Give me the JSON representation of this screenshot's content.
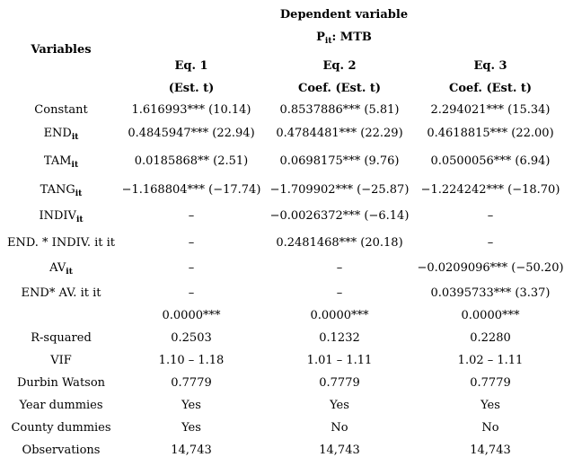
{
  "header": {
    "dependent_variable": "Dependent variable",
    "dv_symbol_main": "P",
    "dv_symbol_sub": "it",
    "dv_symbol_rest": ": MTB",
    "variables": "Variables",
    "columns": [
      {
        "eq": "Eq. 1",
        "sub": "(Est. t)"
      },
      {
        "eq": "Eq. 2",
        "sub": "Coef. (Est. t)"
      },
      {
        "eq": "Eq. 3",
        "sub": "Coef. (Est. t)"
      }
    ]
  },
  "rows": [
    {
      "label": "Constant",
      "sub": "",
      "c1": "1.616993*** (10.14)",
      "c2": "0.8537886*** (5.81)",
      "c3": "2.294021*** (15.34)"
    },
    {
      "label": "END",
      "sub": "it",
      "c1": "0.4845947*** (22.94)",
      "c2": "0.4784481*** (22.29)",
      "c3": "0.4618815*** (22.00)"
    },
    {
      "label": "TAM",
      "sub": "it",
      "c1": "0.0185868** (2.51)",
      "c2": "0.0698175*** (9.76)",
      "c3": "0.0500056*** (6.94)"
    },
    {
      "label": "TANG",
      "sub": "it",
      "c1": "−1.168804*** (−17.74)",
      "c2": "−1.709902*** (−25.87)",
      "c3": "−1.224242*** (−18.70)"
    },
    {
      "label": "INDIV",
      "sub": "it",
      "c1": "–",
      "c2": "−0.0026372*** (−6.14)",
      "c3": "–"
    },
    {
      "label": "END. * INDIV. it it",
      "sub": "",
      "c1": "–",
      "c2": "0.2481468*** (20.18)",
      "c3": "–"
    },
    {
      "label": "AV",
      "sub": "it",
      "c1": "–",
      "c2": "–",
      "c3": "−0.0209096*** (−50.20)"
    },
    {
      "label": "END* AV. it it",
      "sub": "",
      "c1": "–",
      "c2": "–",
      "c3": "0.0395733*** (3.37)"
    },
    {
      "label": "",
      "sub": "",
      "c1": "0.0000***",
      "c2": "0.0000***",
      "c3": "0.0000***"
    },
    {
      "label": "R-squared",
      "sub": "",
      "c1": "0.2503",
      "c2": "0.1232",
      "c3": "0.2280"
    },
    {
      "label": "VIF",
      "sub": "",
      "c1": "1.10 – 1.18",
      "c2": "1.01 – 1.11",
      "c3": "1.02 – 1.11"
    },
    {
      "label": "Durbin Watson",
      "sub": "",
      "c1": "0.7779",
      "c2": "0.7779",
      "c3": "0.7779"
    },
    {
      "label": "Year dummies",
      "sub": "",
      "c1": "Yes",
      "c2": "Yes",
      "c3": "Yes"
    },
    {
      "label": "County dummies",
      "sub": "",
      "c1": "Yes",
      "c2": "No",
      "c3": "No"
    },
    {
      "label": "Observations",
      "sub": "",
      "c1": "14,743",
      "c2": "14,743",
      "c3": "14,743"
    }
  ]
}
